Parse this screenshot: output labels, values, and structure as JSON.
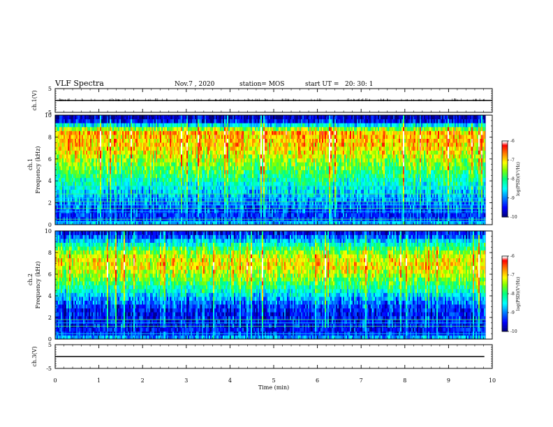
{
  "header": {
    "title": "VLF Spectra",
    "date": "Nov.7  , 2020",
    "station": "station= MOS",
    "start_label": "start  UT  =",
    "start_time": "20: 30: 1"
  },
  "colors": {
    "cmap": [
      "#000080",
      "#0000ff",
      "#0080ff",
      "#00ffff",
      "#00ff80",
      "#80ff00",
      "#ffff00",
      "#ff8000",
      "#ff0000",
      "#ffffff"
    ]
  },
  "chart_data": [
    {
      "type": "line",
      "panel": "ch1-waveform",
      "ylabel": "ch.1(V)",
      "ylim": [
        -5,
        5
      ],
      "yticks": [
        "5",
        "-5"
      ],
      "x": [
        0,
        10
      ],
      "y": [
        0,
        0
      ]
    },
    {
      "type": "heatmap",
      "panel": "ch1-spectrogram",
      "ylabel_top": "ch.1",
      "ylabel": "Frequency (kHz)",
      "ylim": [
        0,
        10
      ],
      "yticks": [
        "0",
        "2",
        "4",
        "6",
        "8",
        "10"
      ],
      "xlim": [
        0,
        10
      ],
      "colorbar": {
        "label": "log(PSD)(V²/Hz)",
        "range": [
          -10,
          -6
        ],
        "ticks": [
          "-6",
          "-7",
          "-8",
          "-9",
          "-10"
        ]
      },
      "freq_profile": {
        "freq_khz": [
          0,
          0.5,
          1,
          1.5,
          2,
          2.5,
          3,
          3.5,
          4,
          4.5,
          5,
          5.5,
          6,
          6.5,
          7,
          7.5,
          8,
          8.5,
          9,
          9.5,
          10
        ],
        "log_psd": [
          -8.5,
          -9.3,
          -9.3,
          -9.2,
          -9.0,
          -8.8,
          -8.6,
          -8.4,
          -8.2,
          -8.0,
          -7.8,
          -7.6,
          -7.4,
          -7.2,
          -7.0,
          -6.9,
          -6.9,
          -6.8,
          -8.2,
          -9.6,
          -9.9
        ]
      },
      "hum_lines_khz": [
        0.3,
        0.5,
        1.2,
        1.5,
        1.8,
        2.1,
        2.4,
        2.8,
        3.5
      ]
    },
    {
      "type": "heatmap",
      "panel": "ch2-spectrogram",
      "ylabel_top": "ch.2",
      "ylabel": "Frequency (kHz)",
      "ylim": [
        0,
        10
      ],
      "yticks": [
        "0",
        "2",
        "4",
        "6",
        "8",
        "10"
      ],
      "xlim": [
        0,
        10
      ],
      "colorbar": {
        "label": "log(PSD)(V²/Hz)",
        "range": [
          -10,
          -6
        ],
        "ticks": [
          "-6",
          "-7",
          "-8",
          "-9",
          "-10"
        ]
      },
      "freq_profile": {
        "freq_khz": [
          0,
          0.5,
          1,
          1.5,
          2,
          2.5,
          3,
          3.5,
          4,
          4.5,
          5,
          5.5,
          6,
          6.5,
          7,
          7.5,
          8,
          8.5,
          9,
          9.5,
          10
        ],
        "log_psd": [
          -8.6,
          -9.4,
          -9.5,
          -9.5,
          -9.5,
          -9.5,
          -9.3,
          -9.0,
          -8.7,
          -8.3,
          -8.0,
          -7.7,
          -7.4,
          -7.2,
          -7.1,
          -7.2,
          -7.5,
          -8.0,
          -8.6,
          -9.2,
          -9.7
        ]
      },
      "hum_lines_khz": [
        0.5,
        1.2,
        1.5,
        1.8
      ]
    },
    {
      "type": "line",
      "panel": "ch3-waveform",
      "ylabel": "ch.3(V)",
      "ylim": [
        -5,
        5
      ],
      "yticks": [
        "5",
        "-5"
      ],
      "xlabel": "Time  (min)",
      "xlim": [
        0,
        10
      ],
      "xticks": [
        "0",
        "1",
        "2",
        "3",
        "4",
        "5",
        "6",
        "7",
        "8",
        "9",
        "10"
      ],
      "x": [
        0,
        9.82
      ],
      "y": [
        0,
        0
      ]
    }
  ]
}
